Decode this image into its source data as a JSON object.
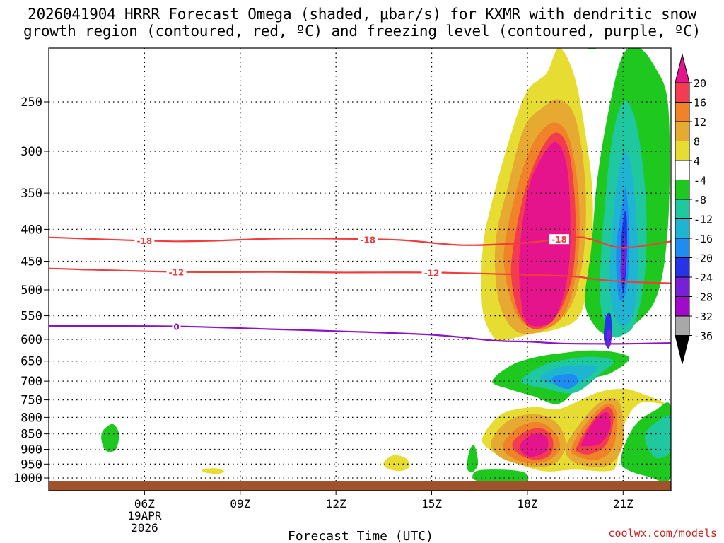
{
  "title_line1": "2026041904 HRRR Forecast Omega (shaded, μbar/s) for KXMR with dendritic snow",
  "title_line2": "growth region (contoured, red, ºC) and freezing level (contoured, purple, ºC)",
  "credit": "coolwx.com/models",
  "chart_data": {
    "type": "heatmap",
    "title": "2026041904 HRRR Forecast Omega (shaded, μbar/s) for KXMR with dendritic snow growth region (contoured, red, ºC) and freezing level (contoured, purple, ºC)",
    "xlabel": "Forecast Time (UTC)",
    "ylabel": "",
    "x_hours_range": [
      3.0,
      22.5
    ],
    "y_pressure_range": [
      1000,
      200
    ],
    "y_scale": "log-pressure",
    "y_ticks": [
      250,
      300,
      350,
      400,
      450,
      500,
      550,
      600,
      650,
      700,
      750,
      800,
      850,
      900,
      950,
      1000
    ],
    "x_ticks": [
      {
        "h": 6,
        "label": "06Z",
        "sub1": "19APR",
        "sub2": "2026"
      },
      {
        "h": 9,
        "label": "09Z"
      },
      {
        "h": 12,
        "label": "12Z"
      },
      {
        "h": 15,
        "label": "15Z"
      },
      {
        "h": 18,
        "label": "18Z"
      },
      {
        "h": 21,
        "label": "21Z"
      }
    ],
    "colorbar": {
      "labels": [
        "20",
        "16",
        "12",
        "8",
        "4",
        "-4",
        "-8",
        "-12",
        "-16",
        "-20",
        "-24",
        "-28",
        "-32",
        "-36"
      ],
      "bands": [
        {
          "from": 16,
          "to": 20,
          "color": "#f23c50"
        },
        {
          "from": 12,
          "to": 16,
          "color": "#f08228"
        },
        {
          "from": 8,
          "to": 12,
          "color": "#e6aa32"
        },
        {
          "from": 4,
          "to": 8,
          "color": "#e6dc32"
        },
        {
          "from": -4,
          "to": 4,
          "color": "#ffffff"
        },
        {
          "from": -8,
          "to": -4,
          "color": "#1ec81e"
        },
        {
          "from": -12,
          "to": -8,
          "color": "#20c8a0"
        },
        {
          "from": -16,
          "to": -12,
          "color": "#1eb4d2"
        },
        {
          "from": -20,
          "to": -16,
          "color": "#1e8cf0"
        },
        {
          "from": -24,
          "to": -20,
          "color": "#2832e6"
        },
        {
          "from": -28,
          "to": -24,
          "color": "#7820d8"
        },
        {
          "from": -32,
          "to": -28,
          "color": "#a00ac8"
        },
        {
          "from": -36,
          "to": -32,
          "color": "#a8a8a8"
        }
      ],
      "over_color": "#e6148c",
      "under_color": "#000000"
    },
    "surface_color": "#a0522d",
    "contours": [
      {
        "name": "isotherm-minus18",
        "value": -18,
        "label": "-18",
        "color": "#f23c3c",
        "hours": [
          3.0,
          7.0,
          10.0,
          12.0,
          14.0,
          16.0,
          18.0,
          19.5,
          20.0,
          21.0,
          22.5
        ],
        "pressures": [
          412,
          418,
          414,
          414,
          416,
          424,
          420,
          412,
          415,
          428,
          418
        ],
        "label_hours": [
          6.0,
          13.0,
          19.0
        ]
      },
      {
        "name": "isotherm-minus12",
        "value": -12,
        "label": "-12",
        "color": "#f23c3c",
        "hours": [
          3.0,
          7.0,
          10.0,
          12.0,
          15.0,
          18.0,
          19.5,
          20.0,
          21.0,
          22.5
        ],
        "pressures": [
          462,
          468,
          468,
          469,
          469,
          473,
          476,
          480,
          485,
          488
        ],
        "label_hours": [
          7.0,
          15.0
        ]
      },
      {
        "name": "freezing-level",
        "value": 0,
        "label": "0",
        "color": "#8c14c8",
        "hours": [
          3.0,
          7.0,
          10.0,
          12.0,
          15.0,
          17.0,
          18.0,
          19.0,
          20.0,
          21.0,
          22.5
        ],
        "pressures": [
          571,
          572,
          578,
          582,
          590,
          603,
          605,
          609,
          610,
          610,
          608
        ],
        "label_hours": [
          7.0
        ]
      }
    ],
    "regions": [
      {
        "name": "upward-motion-yellow-main",
        "value": 4,
        "color": "#e6dc32",
        "hours": [
          16.6,
          16.9,
          17.5,
          18.0,
          18.6,
          19.0,
          19.5,
          19.9,
          20.05,
          20.0,
          19.8,
          19.5,
          18.8,
          18.0,
          17.4,
          17.0,
          16.6
        ],
        "pressures": [
          430,
          360,
          280,
          240,
          225,
          205,
          230,
          300,
          360,
          440,
          520,
          560,
          580,
          590,
          600,
          600,
          540
        ]
      },
      {
        "name": "upward-motion-orange-main",
        "value": 8,
        "color": "#e6aa32",
        "hours": [
          17.0,
          17.4,
          17.9,
          18.5,
          19.0,
          19.5,
          19.8,
          19.8,
          19.5,
          19.0,
          18.3,
          17.6,
          17.1
        ],
        "pressures": [
          420,
          340,
          275,
          255,
          248,
          265,
          330,
          420,
          510,
          560,
          585,
          580,
          520
        ]
      },
      {
        "name": "upward-motion-darkorange-main",
        "value": 12,
        "color": "#f08228",
        "hours": [
          17.3,
          17.7,
          18.2,
          18.8,
          19.3,
          19.6,
          19.6,
          19.3,
          18.8,
          18.1,
          17.6,
          17.3
        ],
        "pressures": [
          420,
          340,
          290,
          270,
          285,
          350,
          440,
          525,
          570,
          575,
          540,
          470
        ]
      },
      {
        "name": "upward-motion-red-main",
        "value": 16,
        "color": "#f23c50",
        "hours": [
          17.55,
          17.9,
          18.4,
          18.9,
          19.3,
          19.5,
          19.45,
          19.1,
          18.6,
          18.1,
          17.7,
          17.5
        ],
        "pressures": [
          430,
          350,
          300,
          280,
          300,
          370,
          460,
          530,
          570,
          575,
          540,
          480
        ]
      },
      {
        "name": "upward-motion-magenta-main",
        "value": 20,
        "color": "#e6148c",
        "hours": [
          17.75,
          18.0,
          18.4,
          18.9,
          19.25,
          19.35,
          19.25,
          18.9,
          18.5,
          18.0,
          17.8
        ],
        "pressures": [
          440,
          350,
          310,
          290,
          320,
          400,
          480,
          550,
          570,
          565,
          520
        ]
      },
      {
        "name": "downward-motion-green-east",
        "value": -4,
        "color": "#1ec81e",
        "hours": [
          20.0,
          20.2,
          20.6,
          21.0,
          21.5,
          22.0,
          22.4,
          22.45,
          22.3,
          22.0,
          21.5,
          21.0,
          20.5,
          20.1,
          19.8
        ],
        "pressures": [
          430,
          330,
          250,
          210,
          205,
          220,
          250,
          350,
          450,
          520,
          560,
          580,
          590,
          570,
          520
        ]
      },
      {
        "name": "downward-motion-teal-east",
        "value": -8,
        "color": "#20c8a0",
        "hours": [
          20.3,
          20.6,
          21.0,
          21.4,
          21.7,
          21.7,
          21.4,
          21.0,
          20.6,
          20.3
        ],
        "pressures": [
          450,
          300,
          250,
          270,
          350,
          460,
          560,
          590,
          590,
          530
        ]
      },
      {
        "name": "downward-motion-cyan-east",
        "value": -12,
        "color": "#1eb4d2",
        "hours": [
          20.6,
          20.8,
          21.05,
          21.3,
          21.45,
          21.4,
          21.1,
          20.8,
          20.6
        ],
        "pressures": [
          440,
          340,
          300,
          330,
          420,
          520,
          570,
          560,
          510
        ]
      },
      {
        "name": "downward-motion-blue-east",
        "value": -16,
        "color": "#1e8cf0",
        "hours": [
          20.8,
          21.0,
          21.1,
          21.2,
          21.1,
          20.9,
          20.8
        ],
        "pressures": [
          420,
          360,
          345,
          420,
          500,
          520,
          480
        ]
      },
      {
        "name": "downward-motion-darkblue-east",
        "value": -20,
        "color": "#2832e6",
        "hours": [
          20.95,
          21.05,
          21.12,
          21.1,
          21.0,
          20.93
        ],
        "pressures": [
          410,
          375,
          390,
          460,
          505,
          460
        ]
      },
      {
        "name": "downward-motion-purple-east",
        "value": -24,
        "color": "#7820d8",
        "hours": [
          20.95,
          21.05,
          21.08,
          21.0,
          20.92
        ],
        "pressures": [
          440,
          410,
          450,
          490,
          470
        ]
      },
      {
        "name": "downward-motion-darkblue-blob",
        "value": -20,
        "color": "#2832e6",
        "hours": [
          20.45,
          20.6,
          20.65,
          20.55,
          20.4
        ],
        "pressures": [
          555,
          545,
          590,
          620,
          600
        ]
      },
      {
        "name": "downward-motion-purple-blob",
        "value": -24,
        "color": "#7820d8",
        "hours": [
          20.5,
          20.6,
          20.62,
          20.5
        ],
        "pressures": [
          585,
          580,
          610,
          615
        ]
      },
      {
        "name": "downward-motion-green-middle",
        "value": -4,
        "color": "#1ec81e",
        "hours": [
          16.9,
          17.5,
          18.3,
          19.2,
          20.0,
          20.8,
          21.2,
          20.6,
          19.8,
          19.0,
          18.2,
          17.4
        ],
        "pressures": [
          700,
          660,
          640,
          630,
          625,
          630,
          645,
          680,
          700,
          760,
          740,
          720
        ]
      },
      {
        "name": "downward-motion-teal-middle",
        "value": -8,
        "color": "#20c8a0",
        "hours": [
          17.8,
          18.5,
          19.3,
          20.1,
          20.7,
          20.3,
          19.5,
          18.6
        ],
        "pressures": [
          700,
          660,
          645,
          640,
          650,
          680,
          730,
          720
        ]
      },
      {
        "name": "downward-motion-cyan-middle",
        "value": -12,
        "color": "#1eb4d2",
        "hours": [
          18.4,
          19.0,
          19.6,
          20.2,
          19.6,
          18.9
        ],
        "pressures": [
          690,
          665,
          660,
          665,
          705,
          710
        ]
      },
      {
        "name": "downward-motion-blue-middle",
        "value": -16,
        "color": "#1e8cf0",
        "hours": [
          18.8,
          19.4,
          19.6,
          19.3,
          18.9
        ],
        "pressures": [
          690,
          682,
          700,
          720,
          710
        ]
      },
      {
        "name": "upward-motion-yellow-low",
        "value": 4,
        "color": "#e6dc32",
        "hours": [
          16.6,
          17.2,
          18.2,
          19.0,
          20.2,
          21.0,
          21.5,
          22.3,
          21.5,
          21.0,
          20.8,
          20.5,
          19.5,
          18.5,
          17.5,
          16.8
        ],
        "pressures": [
          860,
          790,
          770,
          775,
          730,
          720,
          730,
          760,
          760,
          830,
          950,
          975,
          970,
          975,
          940,
          900
        ]
      },
      {
        "name": "upward-motion-orange-low-west",
        "value": 8,
        "color": "#e6aa32",
        "hours": [
          16.9,
          17.4,
          18.2,
          18.9,
          19.2,
          18.9,
          18.2,
          17.3,
          16.9
        ],
        "pressures": [
          865,
          810,
          790,
          815,
          880,
          945,
          960,
          935,
          900
        ]
      },
      {
        "name": "upward-motion-darkorange-low-west",
        "value": 12,
        "color": "#f08228",
        "hours": [
          17.3,
          17.8,
          18.4,
          18.9,
          19.0,
          18.6,
          17.9,
          17.3
        ],
        "pressures": [
          870,
          825,
          815,
          850,
          900,
          940,
          945,
          910
        ]
      },
      {
        "name": "upward-motion-red-low-west",
        "value": 16,
        "color": "#f23c50",
        "hours": [
          17.55,
          18.0,
          18.5,
          18.8,
          18.7,
          18.2,
          17.65
        ],
        "pressures": [
          875,
          840,
          835,
          870,
          920,
          935,
          910
        ]
      },
      {
        "name": "upward-motion-magenta-low-west",
        "value": 20,
        "color": "#e6148c",
        "hours": [
          17.8,
          18.2,
          18.6,
          18.6,
          18.1,
          17.8
        ],
        "pressures": [
          880,
          850,
          860,
          905,
          925,
          905
        ]
      },
      {
        "name": "upward-motion-orange-low-east",
        "value": 8,
        "color": "#e6aa32",
        "hours": [
          19.2,
          19.8,
          20.4,
          20.9,
          21.0,
          20.6,
          20.0,
          19.4
        ],
        "pressures": [
          890,
          800,
          750,
          760,
          880,
          950,
          960,
          940
        ]
      },
      {
        "name": "upward-motion-darkorange-low-east",
        "value": 12,
        "color": "#f08228",
        "hours": [
          19.4,
          19.9,
          20.5,
          20.8,
          20.7,
          20.2,
          19.5
        ],
        "pressures": [
          890,
          810,
          760,
          790,
          890,
          935,
          920
        ]
      },
      {
        "name": "upward-motion-red-low-east",
        "value": 16,
        "color": "#f23c50",
        "hours": [
          19.55,
          20.0,
          20.5,
          20.7,
          20.5,
          20.0,
          19.6
        ],
        "pressures": [
          890,
          815,
          770,
          800,
          880,
          915,
          910
        ]
      },
      {
        "name": "upward-motion-magenta-low-east",
        "value": 20,
        "color": "#e6148c",
        "hours": [
          19.7,
          20.1,
          20.5,
          20.6,
          20.3,
          19.8
        ],
        "pressures": [
          880,
          810,
          785,
          830,
          880,
          890
        ]
      },
      {
        "name": "downward-motion-green-southeast",
        "value": -4,
        "color": "#1ec81e",
        "hours": [
          21.0,
          21.4,
          22.0,
          22.5,
          22.5,
          21.8,
          21.0
        ],
        "pressures": [
          900,
          820,
          780,
          770,
          995,
          995,
          960
        ]
      },
      {
        "name": "downward-motion-teal-southeast",
        "value": -8,
        "color": "#20c8a0",
        "hours": [
          21.7,
          22.1,
          22.5,
          22.5,
          22.1,
          21.8
        ],
        "pressures": [
          850,
          810,
          800,
          900,
          930,
          900
        ]
      },
      {
        "name": "downward-motion-green-nearsurface",
        "value": -4,
        "color": "#1ec81e",
        "hours": [
          16.4,
          17.2,
          17.9,
          18.0,
          17.5,
          16.4
        ],
        "pressures": [
          975,
          970,
          980,
          1010,
          1015,
          1010
        ]
      },
      {
        "name": "downward-motion-green-spur",
        "value": -4,
        "color": "#1ec81e",
        "hours": [
          16.2,
          16.35,
          16.45,
          16.25,
          16.1
        ],
        "pressures": [
          900,
          890,
          950,
          980,
          960
        ]
      },
      {
        "name": "downward-motion-green-06z",
        "value": -4,
        "color": "#1ec81e",
        "hours": [
          4.7,
          5.0,
          5.2,
          5.1,
          4.8,
          4.65
        ],
        "pressures": [
          840,
          820,
          850,
          900,
          905,
          870
        ]
      },
      {
        "name": "upward-motion-yellow-07z",
        "value": 4,
        "color": "#e6dc32",
        "hours": [
          7.8,
          8.2,
          8.5,
          8.3,
          7.9
        ],
        "pressures": [
          970,
          965,
          975,
          985,
          980
        ]
      },
      {
        "name": "upward-motion-yellow-14z",
        "value": 4,
        "color": "#e6dc32",
        "hours": [
          13.5,
          13.8,
          14.2,
          14.3,
          14.0,
          13.6
        ],
        "pressures": [
          945,
          920,
          930,
          960,
          975,
          965
        ]
      },
      {
        "name": "downward-motion-green-top",
        "value": -4,
        "color": "#1ec81e",
        "hours": [
          19.9,
          20.3,
          20.2,
          19.95
        ],
        "pressures": [
          203,
          201,
          205,
          206
        ]
      }
    ]
  }
}
